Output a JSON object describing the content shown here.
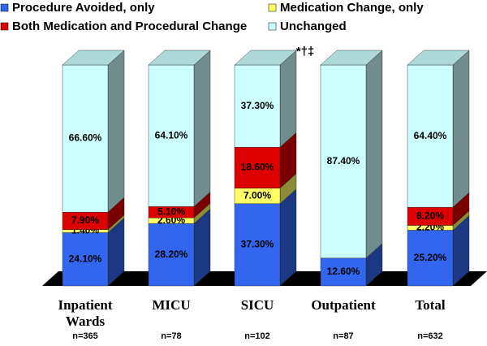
{
  "chart_data": {
    "type": "stacked-bar-3d",
    "categories": [
      "Inpatient Wards",
      "MICU",
      "SICU",
      "Outpatient",
      "Total"
    ],
    "n_labels": [
      "n=365",
      "n=78",
      "n=102",
      "n=87",
      "n=632"
    ],
    "annotation": "*†‡",
    "series": [
      {
        "name": "Procedure Avoided, only",
        "color": "#3366ee",
        "values": [
          24.1,
          28.2,
          37.3,
          12.6,
          25.2
        ],
        "value_labels": [
          "24.10%",
          "28.20%",
          "37.30%",
          "12.60%",
          "25.20%"
        ]
      },
      {
        "name": "Medication Change, only",
        "color": "#ffff66",
        "values": [
          1.4,
          2.6,
          7.0,
          null,
          2.2
        ],
        "value_labels": [
          "1.40%",
          "2.60%",
          "7.00%",
          null,
          "2.20%"
        ]
      },
      {
        "name": "Both Medication and Procedural Change",
        "color": "#dd0000",
        "values": [
          7.9,
          5.1,
          18.6,
          null,
          8.2
        ],
        "value_labels": [
          "7.90%",
          "5.10%",
          "18.60%",
          null,
          "8.20%"
        ]
      },
      {
        "name": "Unchanged",
        "color": "#ccffff",
        "values": [
          66.6,
          64.1,
          37.3,
          87.4,
          64.4
        ],
        "value_labels": [
          "66.60%",
          "64.10%",
          "37.30%",
          "87.40%",
          "64.40%"
        ]
      }
    ],
    "legend": "top"
  }
}
